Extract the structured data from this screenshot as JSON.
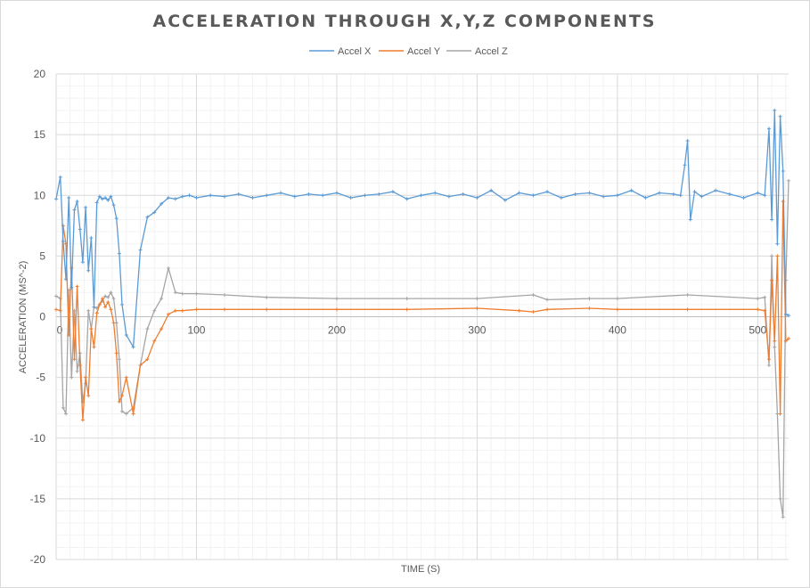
{
  "chart_data": {
    "type": "line",
    "title": "ACCELERATION THROUGH X,Y,Z COMPONENTS",
    "xlabel": "TIME (S)",
    "ylabel": "ACCELERATION (MS^-2)",
    "xlim": [
      0,
      522
    ],
    "ylim": [
      -20,
      20
    ],
    "x_ticks": [
      0,
      100,
      200,
      300,
      400,
      500
    ],
    "y_ticks": [
      -20,
      -15,
      -10,
      -5,
      0,
      5,
      10,
      15,
      20
    ],
    "grid": true,
    "legend_position": "top",
    "series": [
      {
        "name": "Accel X",
        "color": "#5b9bd5",
        "x": [
          0,
          3,
          5,
          7,
          9,
          11,
          13,
          15,
          17,
          19,
          21,
          23,
          25,
          27,
          29,
          31,
          33,
          35,
          37,
          39,
          41,
          43,
          45,
          47,
          50,
          55,
          60,
          65,
          70,
          75,
          80,
          85,
          90,
          95,
          100,
          110,
          120,
          130,
          140,
          150,
          160,
          170,
          180,
          190,
          200,
          210,
          220,
          230,
          240,
          250,
          260,
          270,
          280,
          290,
          300,
          310,
          320,
          330,
          340,
          350,
          360,
          370,
          380,
          390,
          400,
          410,
          420,
          430,
          440,
          445,
          448,
          450,
          452,
          455,
          460,
          470,
          480,
          490,
          500,
          505,
          508,
          510,
          512,
          514,
          516,
          518,
          520,
          522
        ],
        "values": [
          9.7,
          11.5,
          6.2,
          3.1,
          9.8,
          2.4,
          8.8,
          9.5,
          7.2,
          4.5,
          9.0,
          3.8,
          6.5,
          0.8,
          9.4,
          9.9,
          9.7,
          9.8,
          9.6,
          9.9,
          9.2,
          8.1,
          5.2,
          1.0,
          -1.5,
          -2.5,
          5.5,
          8.2,
          8.6,
          9.3,
          9.8,
          9.7,
          9.9,
          10.0,
          9.8,
          10.0,
          9.9,
          10.1,
          9.8,
          10.0,
          10.2,
          9.9,
          10.1,
          10.0,
          10.2,
          9.8,
          10.0,
          10.1,
          10.3,
          9.7,
          10.0,
          10.2,
          9.9,
          10.1,
          9.8,
          10.4,
          9.6,
          10.2,
          10.0,
          10.3,
          9.8,
          10.1,
          10.2,
          9.9,
          10.0,
          10.4,
          9.8,
          10.2,
          10.1,
          10.0,
          12.5,
          14.5,
          8.0,
          10.3,
          9.9,
          10.4,
          10.1,
          9.8,
          10.2,
          10.0,
          15.5,
          8.0,
          17.0,
          6.0,
          16.5,
          12.0,
          0.2,
          0.1
        ]
      },
      {
        "name": "Accel Y",
        "color": "#ed7d31",
        "x": [
          0,
          3,
          5,
          7,
          9,
          11,
          13,
          15,
          17,
          19,
          21,
          23,
          25,
          27,
          29,
          31,
          33,
          35,
          37,
          39,
          41,
          43,
          45,
          47,
          50,
          55,
          60,
          65,
          70,
          75,
          80,
          85,
          90,
          100,
          120,
          150,
          200,
          250,
          300,
          330,
          340,
          350,
          380,
          400,
          450,
          500,
          505,
          508,
          510,
          512,
          514,
          516,
          518,
          520,
          522
        ],
        "values": [
          0.6,
          0.5,
          7.5,
          6.0,
          -1.5,
          4.0,
          -3.5,
          2.5,
          -4.0,
          -8.5,
          -5.0,
          -6.5,
          -1.0,
          -2.5,
          0.3,
          1.0,
          1.5,
          0.8,
          1.2,
          0.6,
          -0.5,
          -3.0,
          -7.0,
          -6.5,
          -5.0,
          -8.0,
          -4.0,
          -3.5,
          -2.0,
          -1.0,
          0.2,
          0.5,
          0.5,
          0.6,
          0.6,
          0.6,
          0.6,
          0.6,
          0.7,
          0.5,
          0.4,
          0.6,
          0.7,
          0.6,
          0.6,
          0.6,
          0.5,
          -3.5,
          3.0,
          -2.0,
          5.0,
          -8.0,
          9.5,
          -2.0,
          -1.8
        ]
      },
      {
        "name": "Accel Z",
        "color": "#a5a5a5",
        "x": [
          0,
          3,
          5,
          7,
          9,
          11,
          13,
          15,
          17,
          19,
          21,
          23,
          25,
          27,
          29,
          31,
          33,
          35,
          37,
          39,
          41,
          43,
          45,
          47,
          50,
          55,
          60,
          65,
          70,
          75,
          80,
          85,
          90,
          100,
          120,
          150,
          200,
          250,
          300,
          340,
          350,
          380,
          400,
          450,
          500,
          505,
          508,
          510,
          512,
          514,
          516,
          518,
          520,
          522
        ],
        "values": [
          1.7,
          1.5,
          -7.5,
          -8.0,
          2.2,
          -5.0,
          0.5,
          -4.5,
          -3.0,
          -7.0,
          -5.5,
          0.5,
          -1.0,
          0.8,
          0.7,
          1.0,
          1.3,
          1.7,
          1.6,
          2.0,
          1.5,
          -0.5,
          -3.5,
          -7.8,
          -8.0,
          -7.5,
          -4.0,
          -1.0,
          0.5,
          1.5,
          4.0,
          2.0,
          1.9,
          1.9,
          1.8,
          1.6,
          1.5,
          1.5,
          1.5,
          1.8,
          1.4,
          1.5,
          1.5,
          1.8,
          1.5,
          1.6,
          -4.0,
          5.0,
          -2.5,
          -8.0,
          -15.0,
          -16.5,
          3.0,
          11.2
        ]
      }
    ]
  }
}
